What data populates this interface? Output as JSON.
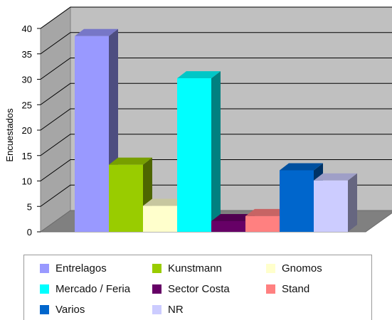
{
  "chart_data": {
    "type": "bar",
    "style": "3d-clustered",
    "ylabel": "Encuestados",
    "xlabel": "",
    "ylim": [
      0,
      40
    ],
    "yticks": [
      0,
      5,
      10,
      15,
      20,
      25,
      30,
      35,
      40
    ],
    "grid": true,
    "legend_position": "bottom",
    "series": [
      {
        "name": "Entrelagos",
        "value": 38.5,
        "color": "#9999ff"
      },
      {
        "name": "Kunstmann",
        "value": 13.2,
        "color": "#99cc00"
      },
      {
        "name": "Gnomos",
        "value": 5.1,
        "color": "#ffffcc"
      },
      {
        "name": "Mercado / Feria",
        "value": 30.2,
        "color": "#00ffff"
      },
      {
        "name": "Sector Costa",
        "value": 2.1,
        "color": "#660066"
      },
      {
        "name": "Stand",
        "value": 3.1,
        "color": "#ff8080"
      },
      {
        "name": "Varios",
        "value": 12.1,
        "color": "#0066cc"
      },
      {
        "name": "NR",
        "value": 10.1,
        "color": "#ccccff"
      }
    ]
  }
}
